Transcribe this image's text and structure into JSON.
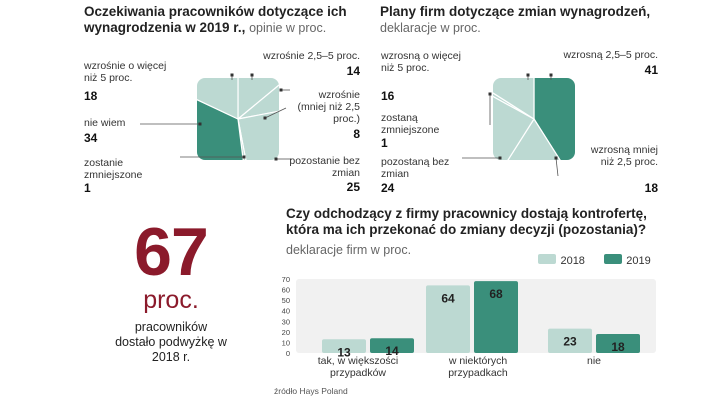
{
  "colors": {
    "light": "#bcd9d2",
    "dark": "#3a8f7b",
    "accent": "#8b1a2b",
    "bg_panel": "#f1f1f1"
  },
  "chart_data": [
    {
      "type": "pie",
      "title": "Oczekiwania pracowników dotyczące ich wynagrodzenia w 2019 r.,",
      "subtitle": "opinie w proc.",
      "slices": [
        {
          "label": "wzrośnie 2,5–5 proc.",
          "value": 14,
          "color": "light"
        },
        {
          "label": "wzrośnie (mniej niż 2,5 proc.)",
          "value": 8,
          "color": "light"
        },
        {
          "label": "pozostanie bez zmian",
          "value": 25,
          "color": "light"
        },
        {
          "label": "zostanie zmniejszone",
          "value": 1,
          "color": "light"
        },
        {
          "label": "nie wiem",
          "value": 34,
          "color": "dark"
        },
        {
          "label": "wzrośnie o więcej niż 5 proc.",
          "value": 18,
          "color": "light"
        }
      ]
    },
    {
      "type": "pie",
      "title": "Plany firm dotyczące zmian wynagrodzeń,",
      "subtitle": "deklaracje w proc.",
      "slices": [
        {
          "label": "wzrosną 2,5–5 proc.",
          "value": 41,
          "color": "dark"
        },
        {
          "label": "wzrosną mniej niż 2,5 proc.",
          "value": 18,
          "color": "light"
        },
        {
          "label": "pozostaną bez zmian",
          "value": 24,
          "color": "light"
        },
        {
          "label": "zostaną zmniejszone",
          "value": 1,
          "color": "light"
        },
        {
          "label": "wzrosną o więcej niż 5 proc.",
          "value": 16,
          "color": "light"
        }
      ]
    },
    {
      "type": "bar",
      "title": "Czy odchodzący z firmy pracownicy dostają kontrofertę, która ma ich przekonać do zmiany decyzji (pozostania)?",
      "subtitle": "deklaracje firm w proc.",
      "categories": [
        "tak, w większości przypadków",
        "w niektórych przypadkach",
        "nie"
      ],
      "series": [
        {
          "name": "2018",
          "values": [
            13,
            64,
            23
          ],
          "color": "light"
        },
        {
          "name": "2019",
          "values": [
            14,
            68,
            18
          ],
          "color": "dark"
        }
      ],
      "ylim": [
        0,
        70
      ],
      "yticks": [
        "0",
        "10",
        "20",
        "30",
        "40",
        "50",
        "60",
        "70"
      ]
    }
  ],
  "pie1_labels": {
    "a_text": "wzrośnie o więcej niż 5 proc.",
    "a_val": "18",
    "b_text": "nie wiem",
    "b_val": "34",
    "c_text": "zostanie zmniejszone",
    "c_val": "1",
    "d_text": "wzrośnie 2,5–5 proc.",
    "d_val": "14",
    "e_text": "wzrośnie (mniej niż 2,5 proc.)",
    "e_val": "8",
    "f_text": "pozostanie bez zmian",
    "f_val": "25"
  },
  "pie2_labels": {
    "a_text": "wzrosną o więcej niż 5 proc.",
    "a_val": "16",
    "b_text": "zostaną zmniejszone",
    "b_val": "1",
    "c_text": "pozostaną bez zmian",
    "c_val": "24",
    "d_text": "wzrosną 2,5–5 proc.",
    "d_val": "41",
    "e_text": "wzrosną mniej niż 2,5 proc.",
    "e_val": "18"
  },
  "highlight": {
    "number": "67",
    "unit": "proc.",
    "caption": "pracowników dostało podwyżkę w 2018 r."
  },
  "bar_category_labels": [
    "tak, w większości przypadków",
    "w niektórych przypadkach",
    "nie"
  ],
  "source": "źródło Hays Poland"
}
